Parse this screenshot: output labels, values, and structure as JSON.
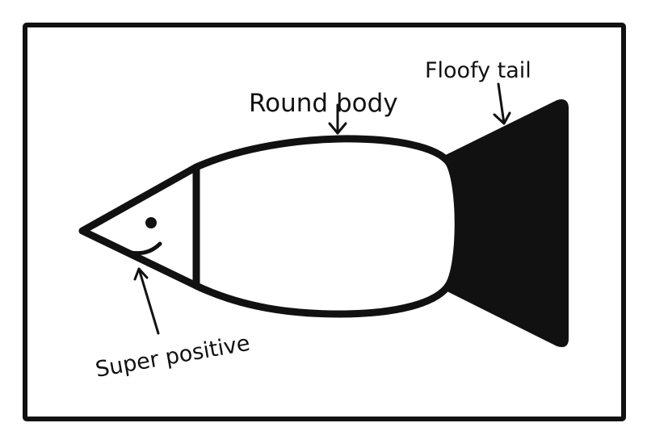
{
  "labels": {
    "round_body": "Round body",
    "floofy_tail": "Floofy tail",
    "super_positive": "Super positive"
  },
  "colors": {
    "ink": "#111111",
    "background": "#ffffff"
  }
}
